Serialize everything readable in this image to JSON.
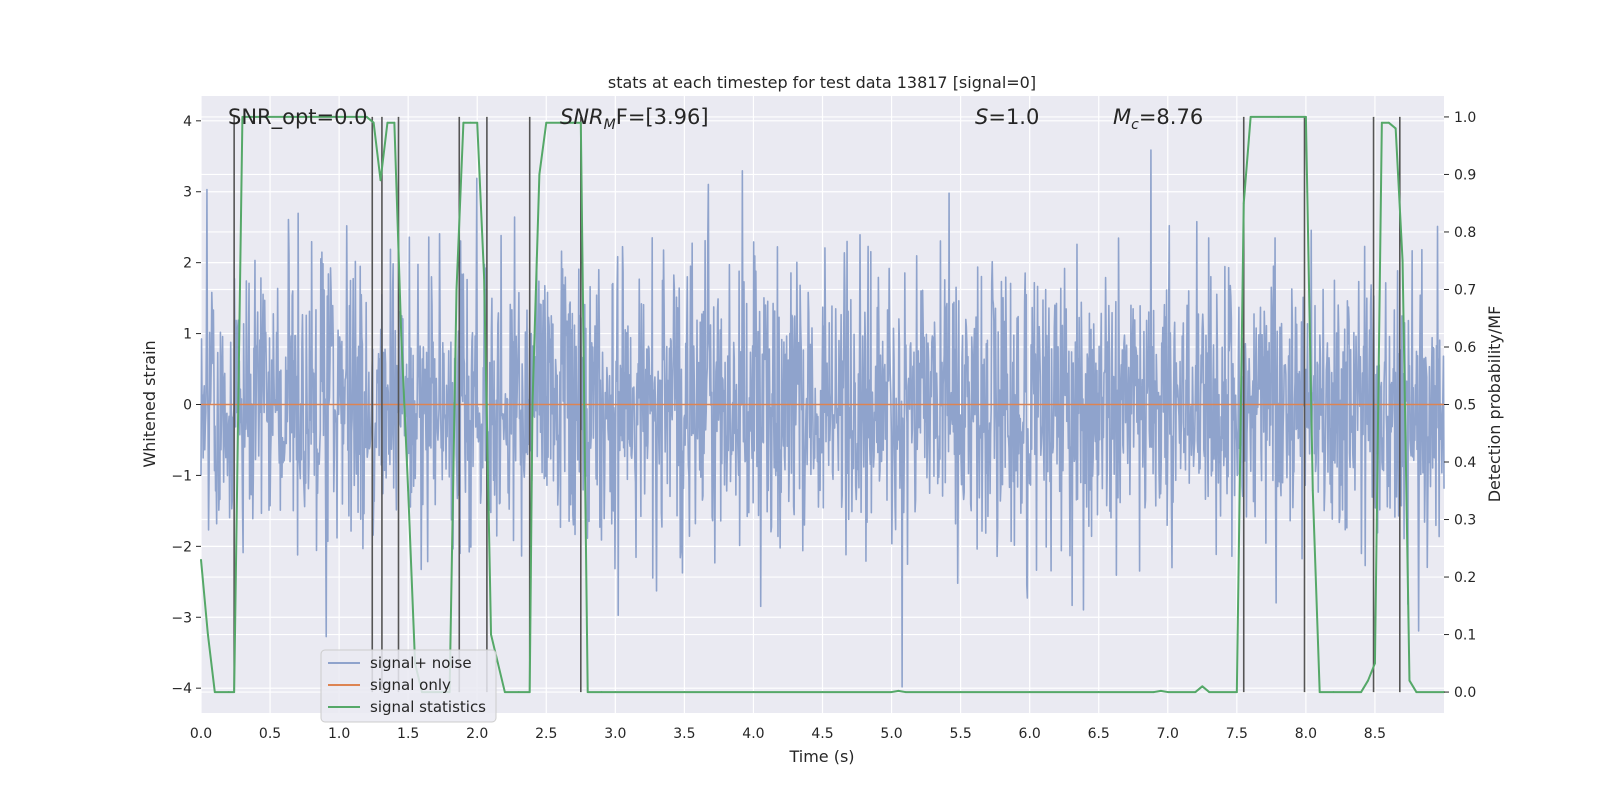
{
  "chart_data": {
    "type": "line",
    "title": "stats at each timestep for test data 13817 [signal=0]",
    "xlabel": "Time (s)",
    "ylabel": "Whitened strain",
    "y2label": "Detection probability/MF",
    "xlim": [
      0.0,
      9.0
    ],
    "ylim": [
      -4.35,
      4.35
    ],
    "y2lim": [
      -0.0364,
      1.0364
    ],
    "x_ticks": [
      0.0,
      0.5,
      1.0,
      1.5,
      2.0,
      2.5,
      3.0,
      3.5,
      4.0,
      4.5,
      5.0,
      5.5,
      6.0,
      6.5,
      7.0,
      7.5,
      8.0,
      8.5
    ],
    "x_tick_labels": [
      "0.0",
      "0.5",
      "1.0",
      "1.5",
      "2.0",
      "2.5",
      "3.0",
      "3.5",
      "4.0",
      "4.5",
      "5.0",
      "5.5",
      "6.0",
      "6.5",
      "7.0",
      "7.5",
      "8.0",
      "8.5"
    ],
    "y_ticks": [
      4,
      3,
      2,
      1,
      0,
      -1,
      -2,
      -3,
      -4
    ],
    "y_tick_labels": [
      "4",
      "3",
      "2",
      "1",
      "0",
      "−1",
      "−2",
      "−3",
      "−4"
    ],
    "y2_ticks": [
      1.0,
      0.9,
      0.8,
      0.7,
      0.6,
      0.5,
      0.4,
      0.3,
      0.2,
      0.1,
      0.0
    ],
    "y2_tick_labels": [
      "1.0",
      "0.9",
      "0.8",
      "0.7",
      "0.6",
      "0.5",
      "0.4",
      "0.3",
      "0.2",
      "0.1",
      "0.0"
    ],
    "annotations": {
      "snr_opt": "SNR_opt=0.0",
      "snr_mf_base": "SNR",
      "snr_mf_sub": "M",
      "snr_mf_rest": "F=[3.96]",
      "s_var": "S",
      "s_val": "=1.0",
      "mc_var": "M",
      "mc_sub": "c",
      "mc_val": "=8.76"
    },
    "legend": {
      "position": "lower-left",
      "entries": [
        "signal+ noise",
        "signal only",
        "signal statistics"
      ]
    },
    "colors": {
      "noise": "#8fa3cc",
      "signal": "#dd8452",
      "stats": "#55a868",
      "vlines": "#555555",
      "plot_bg": "#eaeaf2",
      "grid": "#ffffff"
    },
    "series": [
      {
        "name": "signal+ noise",
        "style": "dense-noise",
        "sigma": 1.0,
        "x_range": [
          0.0,
          9.0
        ],
        "samples": 2304
      },
      {
        "name": "signal only",
        "style": "flat",
        "y": 0.0
      },
      {
        "name": "signal statistics",
        "axis": "right",
        "x": [
          0.0,
          0.05,
          0.1,
          0.2,
          0.24,
          0.3,
          0.4,
          0.6,
          0.8,
          1.0,
          1.2,
          1.25,
          1.3,
          1.35,
          1.4,
          1.45,
          1.5,
          1.55,
          1.6,
          1.7,
          1.8,
          1.85,
          1.9,
          1.95,
          2.0,
          2.05,
          2.1,
          2.15,
          2.2,
          2.3,
          2.38,
          2.4,
          2.45,
          2.5,
          2.6,
          2.7,
          2.75,
          2.8,
          2.9,
          3.0,
          3.5,
          4.0,
          4.5,
          5.0,
          5.05,
          5.1,
          5.5,
          6.0,
          6.5,
          6.9,
          6.95,
          7.0,
          7.2,
          7.25,
          7.3,
          7.5,
          7.55,
          7.6,
          7.8,
          8.0,
          8.05,
          8.1,
          8.2,
          8.4,
          8.45,
          8.5,
          8.55,
          8.6,
          8.65,
          8.7,
          8.75,
          8.8,
          9.0
        ],
        "y": [
          0.23,
          0.1,
          0.0,
          0.0,
          0.0,
          1.0,
          1.0,
          1.0,
          1.0,
          1.0,
          1.0,
          0.99,
          0.89,
          0.99,
          0.99,
          0.62,
          0.35,
          0.05,
          0.0,
          0.0,
          0.0,
          0.7,
          0.99,
          0.99,
          0.99,
          0.72,
          0.1,
          0.05,
          0.0,
          0.0,
          0.0,
          0.5,
          0.9,
          0.99,
          0.99,
          0.99,
          0.99,
          0.0,
          0.0,
          0.0,
          0.0,
          0.0,
          0.0,
          0.0,
          0.002,
          0.0,
          0.0,
          0.0,
          0.0,
          0.0,
          0.002,
          0.0,
          0.0,
          0.01,
          0.0,
          0.0,
          0.85,
          1.0,
          1.0,
          1.0,
          0.35,
          0.0,
          0.0,
          0.0,
          0.02,
          0.05,
          0.99,
          0.99,
          0.98,
          0.75,
          0.02,
          0.0,
          0.0
        ]
      }
    ],
    "vertical_lines": [
      {
        "x": 0.24,
        "ymin": 0.0,
        "ymax": 1.0
      },
      {
        "x": 1.24,
        "ymin": 0.0,
        "ymax": 1.0
      },
      {
        "x": 1.31,
        "ymin": 0.0,
        "ymax": 1.0
      },
      {
        "x": 1.43,
        "ymin": 0.0,
        "ymax": 1.0
      },
      {
        "x": 1.87,
        "ymin": 0.0,
        "ymax": 1.0
      },
      {
        "x": 2.07,
        "ymin": 0.0,
        "ymax": 1.0
      },
      {
        "x": 2.38,
        "ymin": 0.0,
        "ymax": 1.0
      },
      {
        "x": 2.75,
        "ymin": 0.0,
        "ymax": 1.0
      },
      {
        "x": 7.55,
        "ymin": 0.0,
        "ymax": 1.0
      },
      {
        "x": 7.99,
        "ymin": 0.0,
        "ymax": 1.0
      },
      {
        "x": 8.49,
        "ymin": 0.0,
        "ymax": 1.0
      },
      {
        "x": 8.68,
        "ymin": 0.0,
        "ymax": 1.0
      }
    ]
  }
}
